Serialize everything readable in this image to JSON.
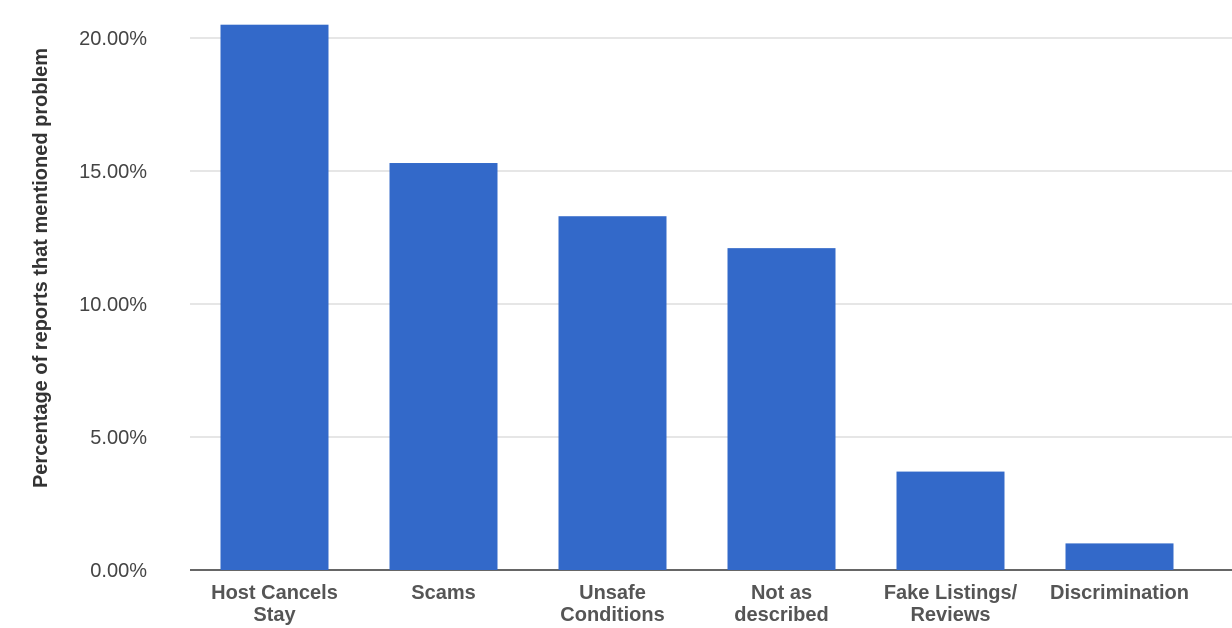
{
  "chart_data": {
    "type": "bar",
    "title": "",
    "xlabel": "",
    "ylabel": "Percentage of reports that mentioned problem",
    "ylim": [
      0,
      0.21
    ],
    "yticks": [
      0,
      0.05,
      0.1,
      0.15,
      0.2
    ],
    "ytick_labels": [
      "0.00%",
      "5.00%",
      "10.00%",
      "15.00%",
      "20.00%"
    ],
    "categories": [
      [
        "Host Cancels",
        "Stay"
      ],
      [
        "Scams"
      ],
      [
        "Unsafe",
        "Conditions"
      ],
      [
        "Not as",
        "described"
      ],
      [
        "Fake Listings/",
        "Reviews"
      ],
      [
        "Discrimination"
      ]
    ],
    "values": [
      0.205,
      0.153,
      0.133,
      0.121,
      0.037,
      0.01
    ],
    "bar_color": "#3369c9",
    "grid": true,
    "legend": "none"
  }
}
